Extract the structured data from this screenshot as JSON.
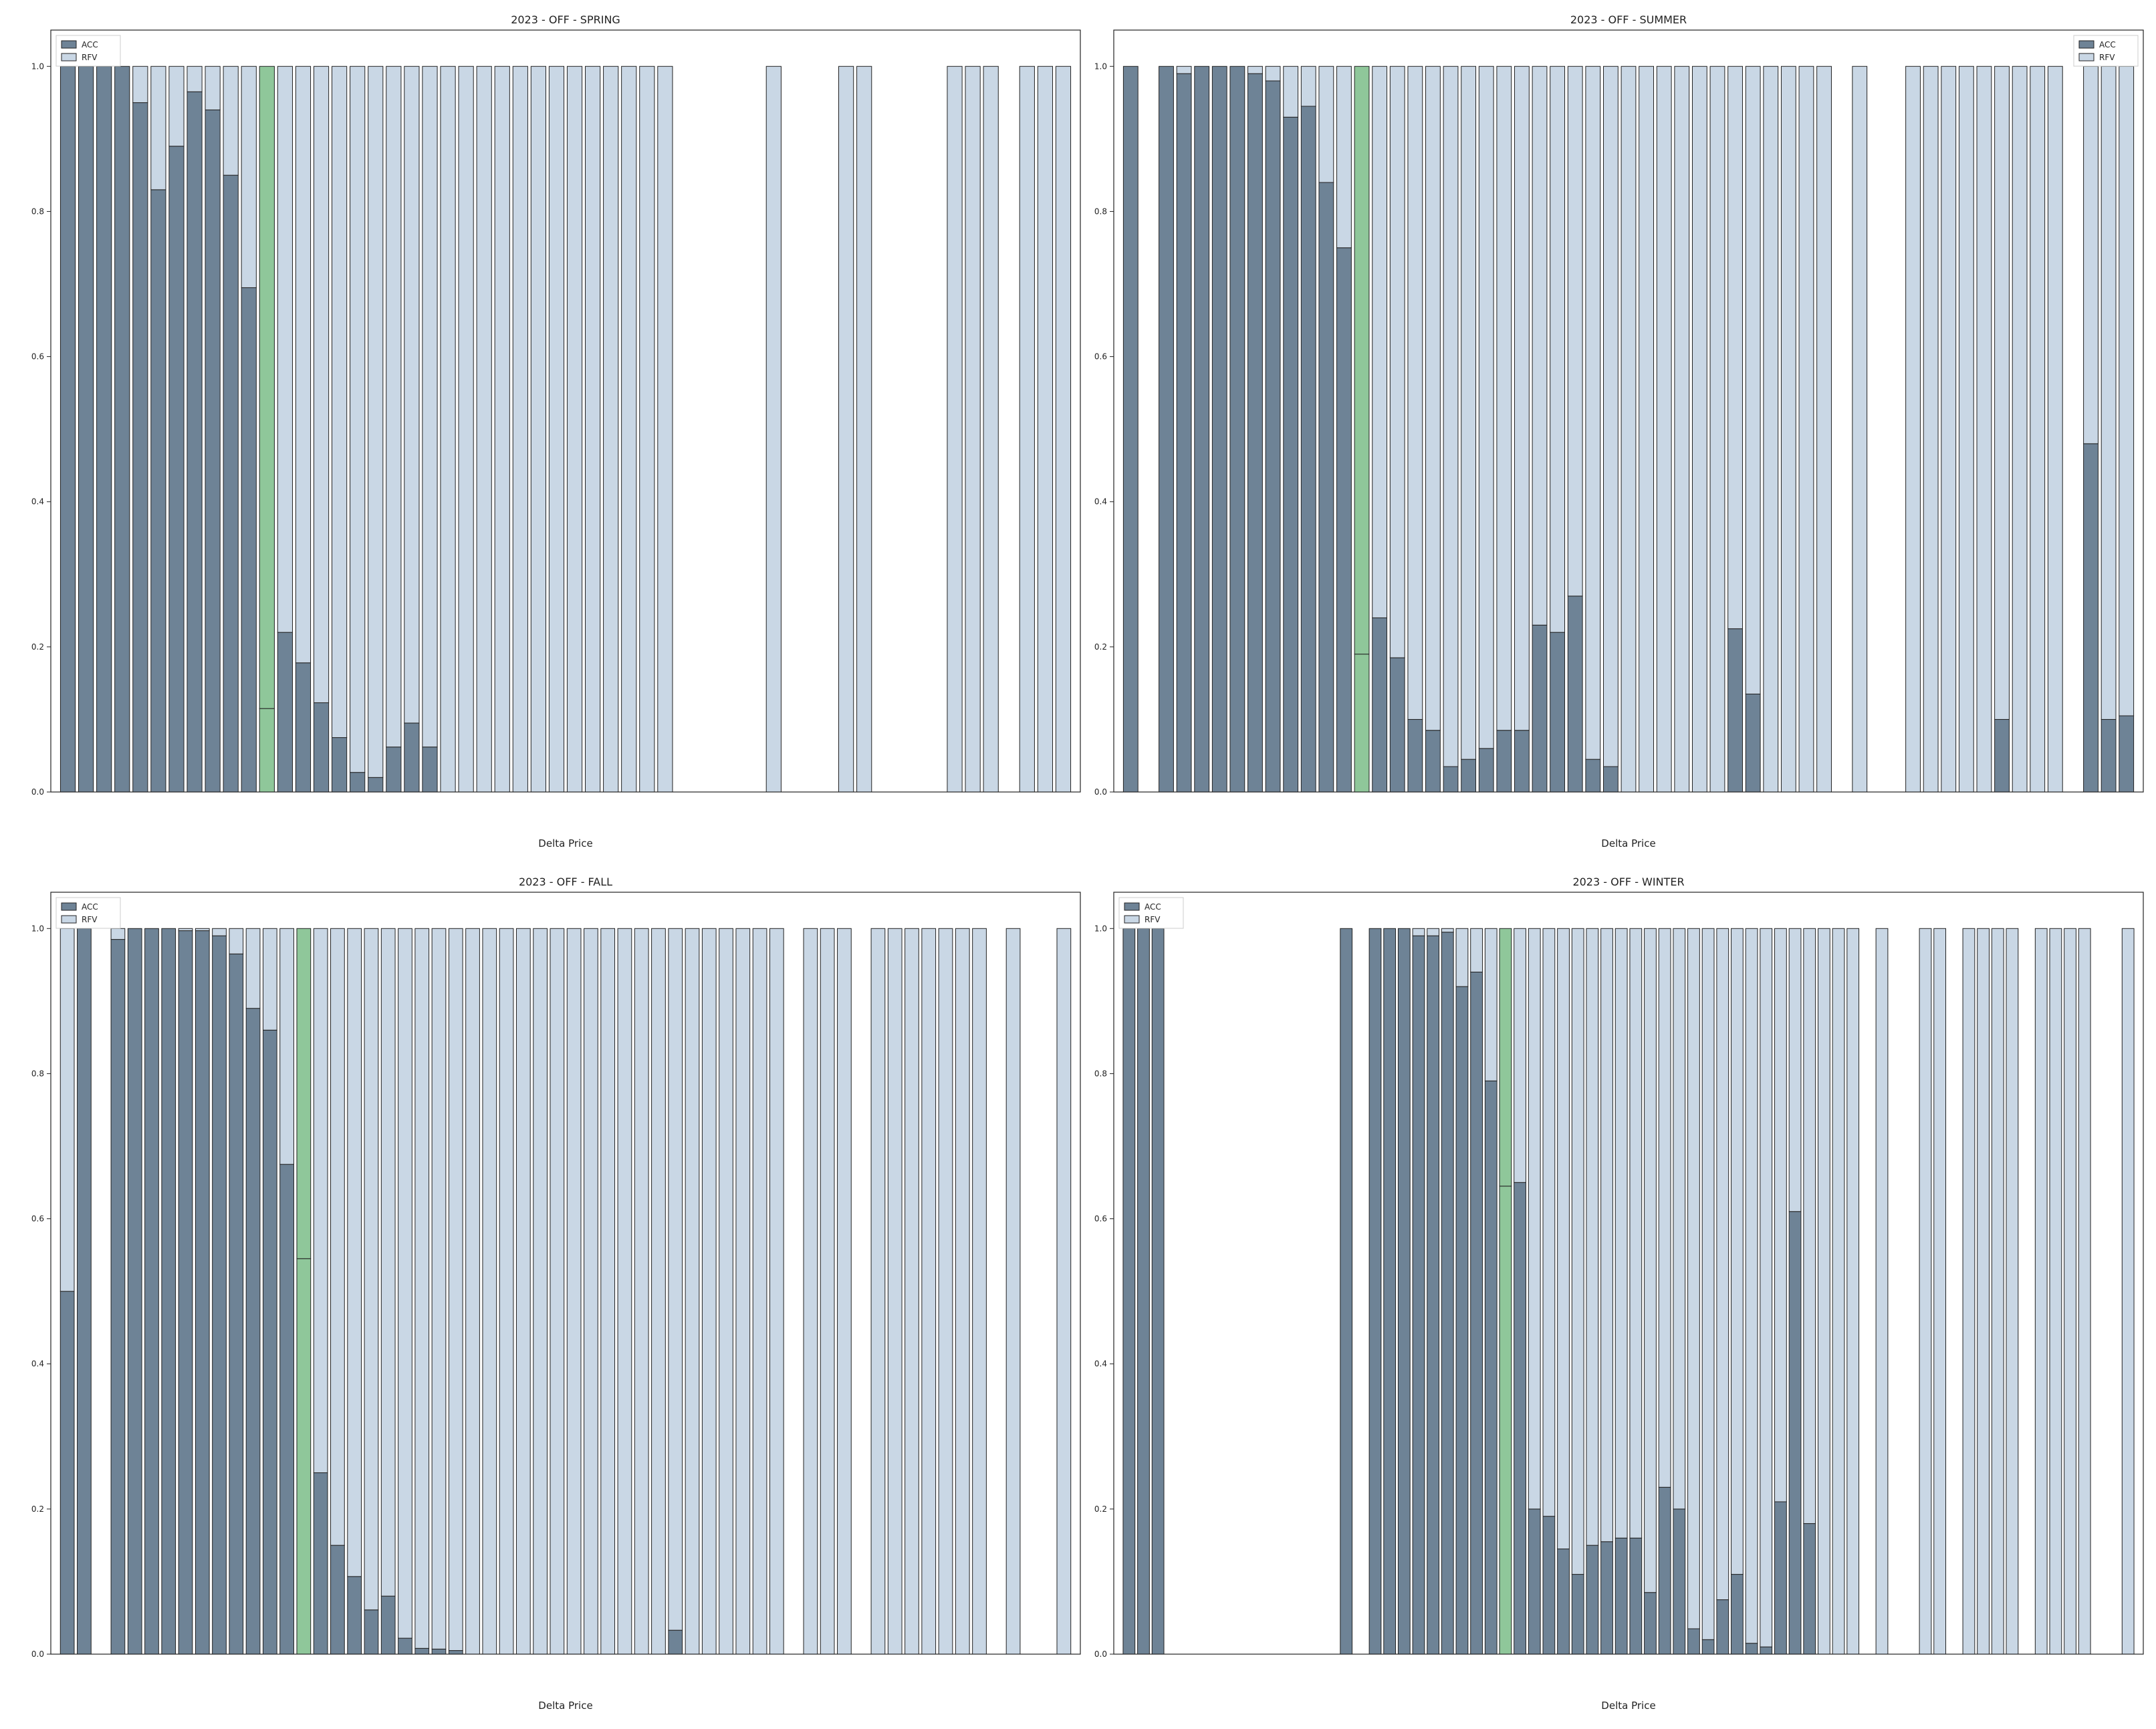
{
  "colors": {
    "acc": "#6e8396",
    "rfv": "#c9d7e5",
    "highlight": "#8fc79a",
    "edge": "#222222"
  },
  "legend": {
    "acc": "ACC",
    "rfv": "RFV"
  },
  "chart_data": [
    {
      "type": "bar",
      "title": "2023 - OFF - SPRING",
      "xlabel": "Delta Price",
      "ylabel": "",
      "ylim": [
        0,
        1.0
      ],
      "yticks": [
        "0.0",
        "0.2",
        "0.4",
        "0.6",
        "0.8",
        "1.0"
      ],
      "stacked": true,
      "legend_position": "top-left",
      "highlight_index": 11,
      "series": [
        {
          "name": "ACC",
          "values": [
            1.0,
            1.0,
            1.0,
            1.0,
            0.95,
            0.83,
            0.89,
            0.965,
            0.94,
            0.85,
            0.695,
            0.115,
            0.22,
            0.178,
            0.123,
            0.075,
            0.027,
            0.02,
            0.062,
            0.095,
            0.062,
            0,
            0,
            0,
            0,
            0,
            0,
            0,
            0,
            0,
            0,
            0,
            0,
            0,
            0,
            0,
            0,
            0,
            0,
            0,
            0,
            0,
            0,
            0,
            0,
            0,
            0,
            0,
            0,
            0,
            0,
            0,
            0,
            0,
            0,
            0
          ]
        },
        {
          "name": "RFV",
          "values": [
            0,
            0,
            0,
            0,
            0.05,
            0.17,
            0.11,
            0.035,
            0.06,
            0.15,
            0.305,
            0.885,
            0.78,
            0.822,
            0.877,
            0.925,
            0.973,
            0.98,
            0.938,
            0.905,
            0.938,
            1,
            1,
            1,
            1,
            1,
            1,
            1,
            1,
            1,
            1,
            1,
            1,
            1,
            0,
            0,
            0,
            0,
            0,
            1,
            0,
            0,
            0,
            1,
            1,
            0,
            0,
            0,
            0,
            1,
            1,
            1,
            0,
            1,
            1,
            1
          ]
        }
      ]
    },
    {
      "type": "bar",
      "title": "2023 - OFF - SUMMER",
      "xlabel": "Delta Price",
      "ylabel": "",
      "ylim": [
        0,
        1.0
      ],
      "yticks": [
        "0.0",
        "0.2",
        "0.4",
        "0.6",
        "0.8",
        "1.0"
      ],
      "stacked": true,
      "legend_position": "top-right",
      "highlight_index": 13,
      "series": [
        {
          "name": "ACC",
          "values": [
            1.0,
            0,
            1.0,
            0.99,
            1.0,
            1.0,
            1.0,
            0.99,
            0.98,
            0.93,
            0.945,
            0.84,
            0.75,
            0.19,
            0.24,
            0.185,
            0.1,
            0.085,
            0.035,
            0.045,
            0.06,
            0.085,
            0.085,
            0.23,
            0.22,
            0.27,
            0.045,
            0.035,
            0,
            0,
            0,
            0,
            0,
            0,
            0.225,
            0.135,
            0,
            0,
            0,
            0,
            0,
            0,
            0,
            0,
            0,
            0,
            0,
            0,
            0,
            0.1,
            0,
            0,
            0,
            0,
            0.48,
            0.1,
            0.105
          ]
        },
        {
          "name": "RFV",
          "values": [
            0,
            0,
            0,
            0.01,
            0,
            0,
            0,
            0.01,
            0.02,
            0.07,
            0.055,
            0.16,
            0.25,
            0.81,
            0.76,
            0.815,
            0.9,
            0.915,
            0.965,
            0.955,
            0.94,
            0.915,
            0.915,
            0.77,
            0.78,
            0.73,
            0.955,
            0.965,
            1,
            1,
            1,
            1,
            1,
            1,
            0.775,
            0.865,
            1,
            1,
            1,
            1,
            0,
            1,
            0,
            0,
            1,
            1,
            1,
            1,
            1,
            0.9,
            1,
            1,
            1,
            0,
            0.52,
            0.9,
            0.895
          ]
        }
      ]
    },
    {
      "type": "bar",
      "title": "2023 - OFF - FALL",
      "xlabel": "Delta Price",
      "ylabel": "",
      "ylim": [
        0,
        1.0
      ],
      "yticks": [
        "0.0",
        "0.2",
        "0.4",
        "0.6",
        "0.8",
        "1.0"
      ],
      "stacked": true,
      "legend_position": "top-left",
      "highlight_index": 14,
      "series": [
        {
          "name": "ACC",
          "values": [
            0.5,
            1.0,
            0,
            0.985,
            1.0,
            1.0,
            1.0,
            0.997,
            0.997,
            0.99,
            0.965,
            0.89,
            0.86,
            0.675,
            0.545,
            0.25,
            0.15,
            0.107,
            0.061,
            0.08,
            0.022,
            0.008,
            0.007,
            0.005,
            0,
            0,
            0,
            0,
            0,
            0,
            0,
            0,
            0,
            0,
            0,
            0,
            0.033,
            0,
            0,
            0,
            0,
            0,
            0,
            0,
            0,
            0,
            0,
            0,
            0,
            0,
            0,
            0,
            0,
            0,
            0,
            0,
            0,
            0,
            0,
            0
          ]
        },
        {
          "name": "RFV",
          "values": [
            0.5,
            0,
            0,
            0.015,
            0,
            0,
            0,
            0.003,
            0.003,
            0.01,
            0.035,
            0.11,
            0.14,
            0.325,
            0.455,
            0.75,
            0.85,
            0.893,
            0.939,
            0.92,
            0.978,
            0.992,
            0.993,
            0.995,
            1,
            1,
            1,
            1,
            1,
            1,
            1,
            1,
            1,
            1,
            1,
            1,
            0.967,
            1,
            1,
            1,
            1,
            1,
            1,
            0,
            1,
            1,
            1,
            0,
            1,
            1,
            1,
            1,
            1,
            1,
            1,
            0,
            1,
            0,
            0,
            1
          ]
        }
      ]
    },
    {
      "type": "bar",
      "title": "2023 - OFF - WINTER",
      "xlabel": "Delta Price",
      "ylabel": "",
      "ylim": [
        0,
        1.0
      ],
      "yticks": [
        "0.0",
        "0.2",
        "0.4",
        "0.6",
        "0.8",
        "1.0"
      ],
      "stacked": true,
      "legend_position": "top-left",
      "highlight_index": 26,
      "series": [
        {
          "name": "ACC",
          "values": [
            1.0,
            1.0,
            1.0,
            0,
            0,
            0,
            0,
            0,
            0,
            0,
            0,
            0,
            0,
            0,
            0,
            1.0,
            0,
            1.0,
            1.0,
            1.0,
            0.99,
            0.99,
            0.995,
            0.92,
            0.94,
            0.79,
            0.645,
            0.65,
            0.2,
            0.19,
            0.145,
            0.11,
            0.15,
            0.155,
            0.16,
            0.16,
            0.085,
            0.23,
            0.2,
            0.035,
            0.02,
            0.075,
            0.11,
            0.015,
            0.01,
            0.21,
            0.61,
            0.18,
            0,
            0,
            0,
            0,
            0,
            0,
            0,
            0,
            0,
            0,
            0,
            0,
            0,
            0,
            0,
            0,
            0,
            0,
            0,
            0,
            0,
            0
          ]
        },
        {
          "name": "RFV",
          "values": [
            0,
            0,
            0,
            0,
            0,
            0,
            0,
            0,
            0,
            0,
            0,
            0,
            0,
            0,
            0,
            0,
            0,
            0,
            0,
            0,
            0.01,
            0.01,
            0.005,
            0.08,
            0.06,
            0.21,
            0.355,
            0.35,
            0.8,
            0.81,
            0.855,
            0.89,
            0.85,
            0.845,
            0.84,
            0.84,
            0.915,
            0.77,
            0.8,
            0.965,
            0.98,
            0.925,
            0.89,
            0.985,
            0.99,
            0.79,
            0.39,
            0.82,
            1,
            1,
            1,
            0,
            1,
            0,
            0,
            1,
            1,
            0,
            1,
            1,
            1,
            1,
            0,
            1,
            1,
            1,
            1,
            0,
            0,
            1
          ]
        }
      ]
    }
  ]
}
